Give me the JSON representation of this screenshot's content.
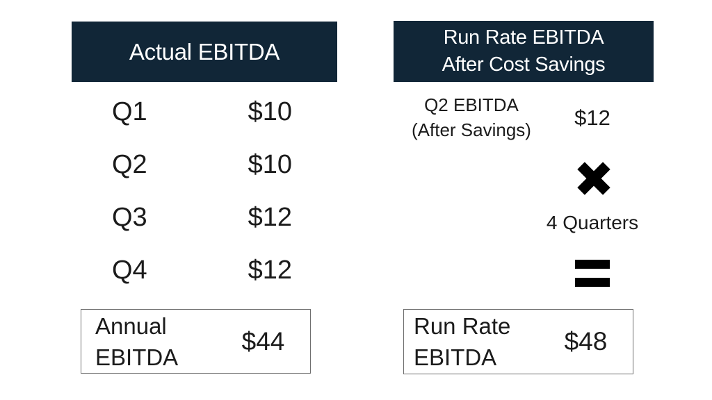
{
  "colors": {
    "header_bg": "#112637",
    "header_text": "#ffffff",
    "text": "#1b1b1b",
    "box_border": "#6e6e6e",
    "symbol": "#000000",
    "background": "#ffffff"
  },
  "left_panel": {
    "header": "Actual EBITDA",
    "rows": [
      {
        "label": "Q1",
        "value": "$10"
      },
      {
        "label": "Q2",
        "value": "$10"
      },
      {
        "label": "Q3",
        "value": "$12"
      },
      {
        "label": "Q4",
        "value": "$12"
      }
    ],
    "total": {
      "label_line1": "Annual",
      "label_line2": "EBITDA",
      "value": "$44"
    }
  },
  "right_panel": {
    "header_line1": "Run Rate EBITDA",
    "header_line2": "After Cost Savings",
    "q2": {
      "label_line1": "Q2 EBITDA",
      "label_line2": "(After Savings)",
      "value": "$12"
    },
    "icons": {
      "multiply": "heavy-x-multiply",
      "equals": "heavy-equals"
    },
    "multiplier_label": "4 Quarters",
    "total": {
      "label_line1": "Run Rate",
      "label_line2": "EBITDA",
      "value": "$48"
    }
  }
}
